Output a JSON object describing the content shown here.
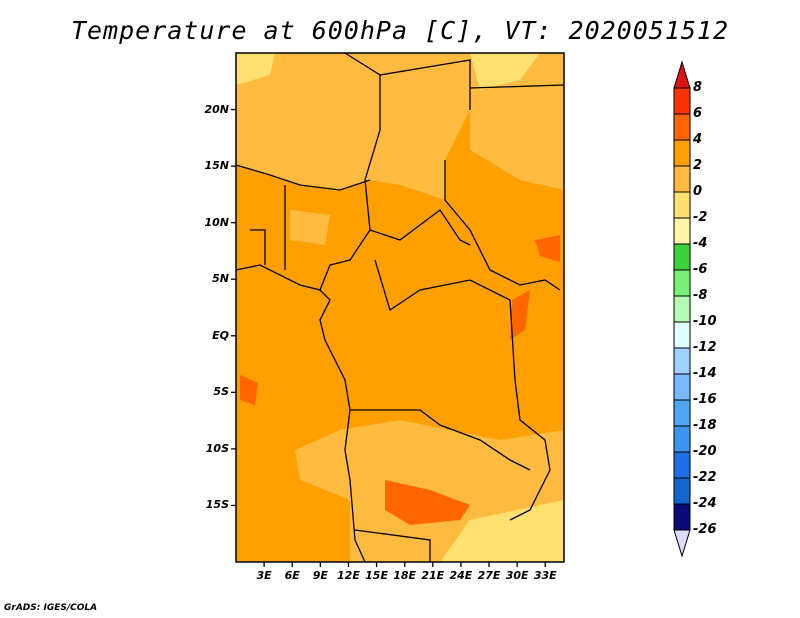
{
  "title": "Temperature at 600hPa [C], VT: 2020051512",
  "credit": "GrADS: IGES/COLA",
  "map": {
    "lon_range": [
      0,
      35
    ],
    "lat_range": [
      -20,
      25
    ],
    "lon_ticks": [
      "3E",
      "6E",
      "9E",
      "12E",
      "15E",
      "18E",
      "21E",
      "24E",
      "27E",
      "30E",
      "33E"
    ],
    "lon_tick_values": [
      3,
      6,
      9,
      12,
      15,
      18,
      21,
      24,
      27,
      30,
      33
    ],
    "lat_ticks": [
      "20N",
      "15N",
      "10N",
      "5N",
      "EQ",
      "5S",
      "10S",
      "15S"
    ],
    "lat_tick_values": [
      20,
      15,
      10,
      5,
      0,
      -5,
      -10,
      -15
    ]
  },
  "colorbar": {
    "labels": [
      "8",
      "6",
      "4",
      "2",
      "0",
      "-2",
      "-4",
      "-6",
      "-8",
      "-10",
      "-12",
      "-14",
      "-16",
      "-18",
      "-20",
      "-22",
      "-24",
      "-26"
    ],
    "over_color": "#dc1414",
    "under_color": "#dcdcff",
    "colors": [
      "#ff3300",
      "#ff6600",
      "#ffa000",
      "#ffbb40",
      "#ffe070",
      "#fff5a8",
      "#3cd23c",
      "#78f078",
      "#b4fab4",
      "#e0ffff",
      "#a0d2ff",
      "#78b9ff",
      "#50a5f5",
      "#3c96f0",
      "#1e6ee6",
      "#1464d2",
      "#0a0a78"
    ]
  }
}
